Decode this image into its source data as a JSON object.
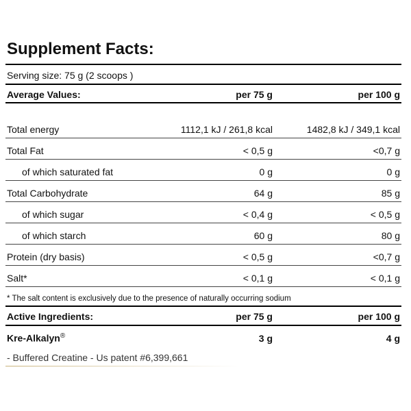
{
  "title": "Supplement Facts:",
  "serving_size": "Serving size:  75 g (2 scoops )",
  "table": {
    "header": [
      "Average Values:",
      "per 75 g",
      "per 100 g"
    ],
    "rows": [
      [
        "Total energy",
        "1112,1 kJ / 261,8 kcal",
        "1482,8 kJ / 349,1 kcal"
      ],
      [
        "Total Fat",
        "< 0,5 g",
        "<0,7 g"
      ],
      [
        "of which saturated fat",
        "0 g",
        "0 g"
      ],
      [
        "Total Carbohydrate",
        "64 g",
        "85 g"
      ],
      [
        "of which sugar",
        "< 0,4 g",
        "< 0,5 g"
      ],
      [
        "of which starch",
        "60 g",
        "80 g"
      ],
      [
        "Protein (dry basis)",
        "< 0,5 g",
        "<0,7 g"
      ],
      [
        "Salt*",
        "< 0,1 g",
        "< 0,1 g"
      ]
    ]
  },
  "footnote": "* The salt content is exclusively due to the presence of naturally occurring sodium",
  "active": {
    "header": [
      "Active Ingredients:",
      "per 75 g",
      "per 100 g"
    ],
    "rows": [
      [
        "Kre-Alkalyn",
        "3 g",
        "4 g"
      ]
    ],
    "mark": "®",
    "note": "- Buffered Creatine - Us patent #6,399,661"
  }
}
